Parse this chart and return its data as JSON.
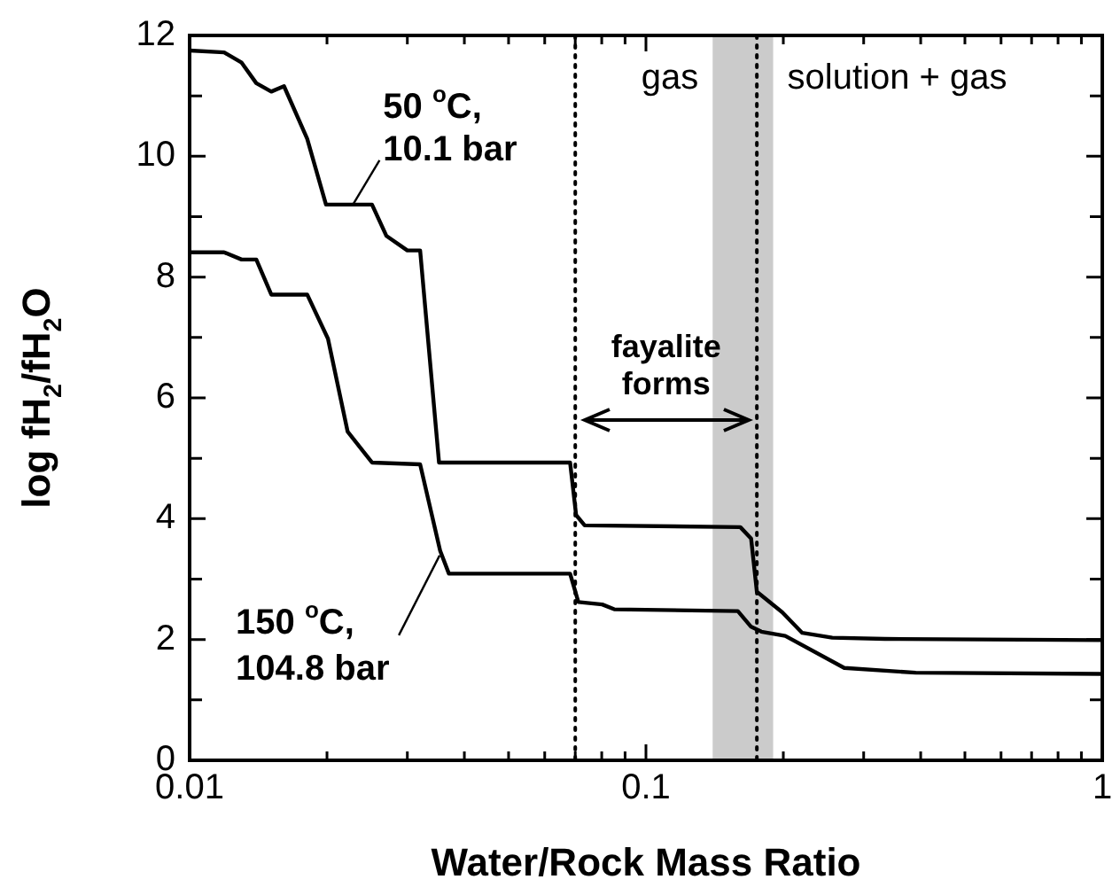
{
  "chart_data": {
    "type": "line",
    "xlabel": "Water/Rock Mass Ratio",
    "ylabel": "log fH$_{2}$/fH$_{2}$O",
    "log": "x",
    "xlim": [
      0.01,
      1
    ],
    "xticks": [
      0.01,
      {
        "value": 0.02,
        "label": null
      },
      {
        "value": 0.03,
        "label": null
      },
      {
        "value": 0.04,
        "label": null
      },
      {
        "value": 0.05,
        "label": null
      },
      {
        "value": 0.06,
        "label": null
      },
      {
        "value": 0.07,
        "label": null
      },
      {
        "value": 0.08,
        "label": null
      },
      {
        "value": 0.09,
        "label": null
      },
      0.1,
      {
        "value": 0.2,
        "label": null
      },
      {
        "value": 0.3,
        "label": null
      },
      {
        "value": 0.4,
        "label": null
      },
      {
        "value": 0.5,
        "label": null
      },
      {
        "value": 0.6,
        "label": null
      },
      {
        "value": 0.7,
        "label": null
      },
      {
        "value": 0.8,
        "label": null
      },
      {
        "value": 0.9,
        "label": null
      },
      1
    ],
    "ylim": [
      0,
      12
    ],
    "yticks": [
      0,
      {
        "value": 1,
        "label": null
      },
      2,
      {
        "value": 3,
        "label": null
      },
      4,
      {
        "value": 5,
        "label": null
      },
      6,
      {
        "value": 7,
        "label": null
      },
      8,
      {
        "value": 9,
        "label": null
      },
      10,
      {
        "value": 11,
        "label": null
      },
      12
    ],
    "marker": "none",
    "line_style": "solid",
    "series": [
      {
        "color": "#000000",
        "x": [
          0.01,
          0.0119,
          0.013,
          0.014,
          0.0151,
          0.0161,
          0.0181,
          0.0199,
          0.0251,
          0.027,
          0.03,
          0.032,
          0.0352,
          0.0682,
          0.0703,
          0.0734,
          0.161,
          0.17,
          0.175,
          0.199,
          0.22,
          0.256,
          0.334,
          1
        ],
        "values": [
          11.75,
          11.72,
          11.55,
          11.21,
          11.07,
          11.16,
          10.29,
          9.2,
          9.2,
          8.68,
          8.44,
          8.44,
          4.93,
          4.93,
          4.06,
          3.89,
          3.86,
          3.67,
          2.79,
          2.45,
          2.11,
          2.03,
          2.01,
          1.99
        ]
      },
      {
        "color": "#000000",
        "x": [
          0.01,
          0.0119,
          0.013,
          0.014,
          0.0151,
          0.0181,
          0.0201,
          0.0222,
          0.0251,
          0.032,
          0.0354,
          0.037,
          0.0682,
          0.0711,
          0.0802,
          0.0852,
          0.159,
          0.17,
          0.179,
          0.202,
          0.272,
          0.39,
          1
        ],
        "values": [
          8.41,
          8.41,
          8.29,
          8.29,
          7.71,
          7.71,
          6.98,
          5.44,
          4.93,
          4.9,
          3.47,
          3.09,
          3.09,
          2.62,
          2.58,
          2.5,
          2.47,
          2.21,
          2.13,
          2.06,
          1.53,
          1.45,
          1.43
        ]
      }
    ],
    "ref_lines": [
      {
        "axis": "x",
        "value": 0.07,
        "color": "#000000",
        "line_style": "dotted"
      },
      {
        "axis": "x",
        "value": 0.175,
        "color": "#000000",
        "line_style": "dotted"
      }
    ],
    "bands": [
      {
        "axis": "x",
        "from": 0.14,
        "to": 0.19,
        "color": "#8c8c8c"
      }
    ],
    "annotations": [
      {
        "text": "50 $^{o}$C,\n10.1 bar",
        "x": 0.0228,
        "y": 9.2
      },
      {
        "text": "150 $^{o}$C,\n104.8 bar",
        "x": 0.0353,
        "y": 3.39
      },
      "gas",
      "solution + gas",
      "fayalite\nforms"
    ]
  }
}
